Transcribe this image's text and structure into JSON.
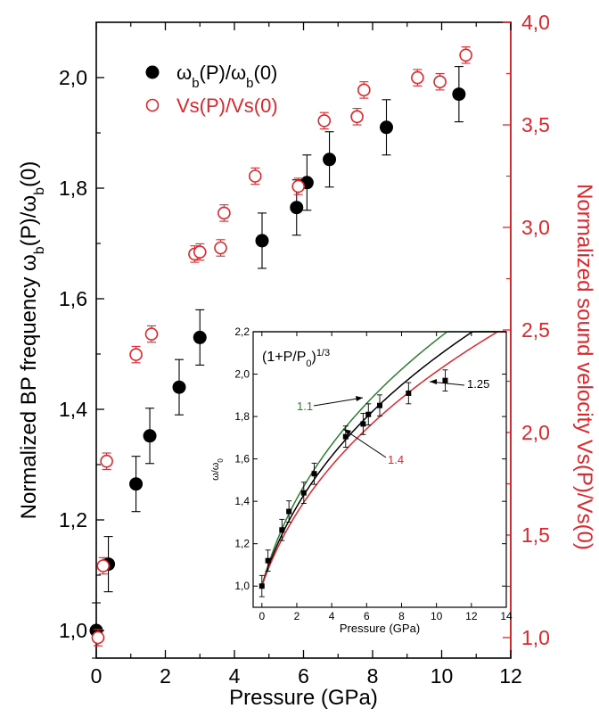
{
  "colors": {
    "black": "#000000",
    "red": "#e0262b",
    "green": "#2e7d32",
    "inset_red": "#e0262b"
  },
  "chart_data": [
    {
      "type": "scatter",
      "xlabel": "Pressure (GPa)",
      "ylabel": "Normalized BP frequency  ω_b(P)/ω_b(0)",
      "ylabel_parts": {
        "pre": "Normalized BP frequency  ω",
        "sub1": "b",
        "mid": "(P)/ω",
        "sub2": "b",
        "post": "(0)"
      },
      "y2label": "Normalized sound velocity  Vs(P)/Vs(0)",
      "xlim": [
        0,
        12
      ],
      "ylim": [
        0.95,
        2.1
      ],
      "y2lim": [
        0.9,
        4.0
      ],
      "x_ticks": [
        0,
        2,
        4,
        6,
        8,
        10,
        12
      ],
      "x_tick_labels": [
        "0",
        "2",
        "4",
        "6",
        "8",
        "10",
        "12"
      ],
      "y_ticks": [
        1.0,
        1.2,
        1.4,
        1.6,
        1.8,
        2.0
      ],
      "y_tick_labels": [
        "1,0",
        "1,2",
        "1,4",
        "1,6",
        "1,8",
        "2,0"
      ],
      "y2_ticks": [
        1.0,
        1.5,
        2.0,
        2.5,
        3.0,
        3.5,
        4.0
      ],
      "y2_tick_labels": [
        "1,0",
        "1,5",
        "2,0",
        "2,5",
        "3,0",
        "3,5",
        "4,0"
      ],
      "legend": {
        "position": "top-left",
        "entries": [
          {
            "pre": "ω",
            "sub1": "b",
            "mid": "(P)/ω",
            "sub2": "b",
            "post": "(0)"
          },
          {
            "text": "Vs(P)/Vs(0)"
          }
        ]
      },
      "series": [
        {
          "name": "ω_b(P)/ω_b(0)",
          "axis": "left",
          "marker": "filled-circle",
          "x": [
            0.0,
            0.35,
            1.15,
            1.55,
            2.4,
            3.0,
            4.8,
            5.8,
            6.1,
            6.75,
            8.4,
            10.5
          ],
          "y": [
            1.0,
            1.12,
            1.265,
            1.352,
            1.44,
            1.53,
            1.705,
            1.765,
            1.81,
            1.852,
            1.91,
            1.97
          ],
          "err": [
            0.05,
            0.05,
            0.05,
            0.05,
            0.05,
            0.05,
            0.05,
            0.05,
            0.05,
            0.05,
            0.05,
            0.05
          ]
        },
        {
          "name": "Vs(P)/Vs(0)",
          "axis": "right",
          "marker": "open-circle",
          "x": [
            0.05,
            0.2,
            0.3,
            1.15,
            1.6,
            2.85,
            3.0,
            3.6,
            3.7,
            4.6,
            5.85,
            6.6,
            7.55,
            7.75,
            9.3,
            9.95,
            10.7
          ],
          "y": [
            1.0,
            1.35,
            1.86,
            2.38,
            2.48,
            2.87,
            2.88,
            2.9,
            3.07,
            3.25,
            3.2,
            3.52,
            3.54,
            3.67,
            3.73,
            3.71,
            3.84
          ],
          "err": [
            0.04,
            0.04,
            0.04,
            0.04,
            0.04,
            0.04,
            0.04,
            0.04,
            0.04,
            0.04,
            0.04,
            0.04,
            0.04,
            0.04,
            0.04,
            0.04,
            0.04
          ]
        }
      ]
    },
    {
      "type": "line",
      "title_parts": {
        "pre": "(1+P/P",
        "sub": "0",
        "post": ")",
        "sup": "1/3"
      },
      "xlabel": "Pressure (GPa)",
      "ylabel_parts": {
        "pre": "ω/ω",
        "sub": "0"
      },
      "xlim": [
        -0.5,
        14
      ],
      "ylim": [
        0.9,
        2.2
      ],
      "x_ticks": [
        0,
        2,
        4,
        6,
        8,
        10,
        12,
        14
      ],
      "x_tick_labels": [
        "0",
        "2",
        "4",
        "6",
        "8",
        "10",
        "12",
        "14"
      ],
      "y_ticks": [
        1.0,
        1.2,
        1.4,
        1.6,
        1.8,
        2.0,
        2.2
      ],
      "y_tick_labels": [
        "1,0",
        "1,2",
        "1,4",
        "1,6",
        "1,8",
        "2,0",
        "2,2"
      ],
      "annotations": [
        "1.1",
        "1.25",
        "1.4"
      ],
      "curves": [
        {
          "P0": 1.1,
          "label": "1.1",
          "color": "green"
        },
        {
          "P0": 1.25,
          "label": "1.25",
          "color": "black"
        },
        {
          "P0": 1.4,
          "label": "1.4",
          "color": "inset_red"
        }
      ],
      "points": {
        "x": [
          0.0,
          0.35,
          1.15,
          1.55,
          2.4,
          3.0,
          4.8,
          5.8,
          6.1,
          6.75,
          8.4,
          10.5
        ],
        "y": [
          1.0,
          1.12,
          1.265,
          1.352,
          1.44,
          1.53,
          1.705,
          1.765,
          1.81,
          1.852,
          1.91,
          1.97
        ],
        "err": [
          0.05,
          0.05,
          0.05,
          0.05,
          0.05,
          0.05,
          0.05,
          0.05,
          0.05,
          0.05,
          0.05,
          0.05
        ]
      }
    }
  ]
}
